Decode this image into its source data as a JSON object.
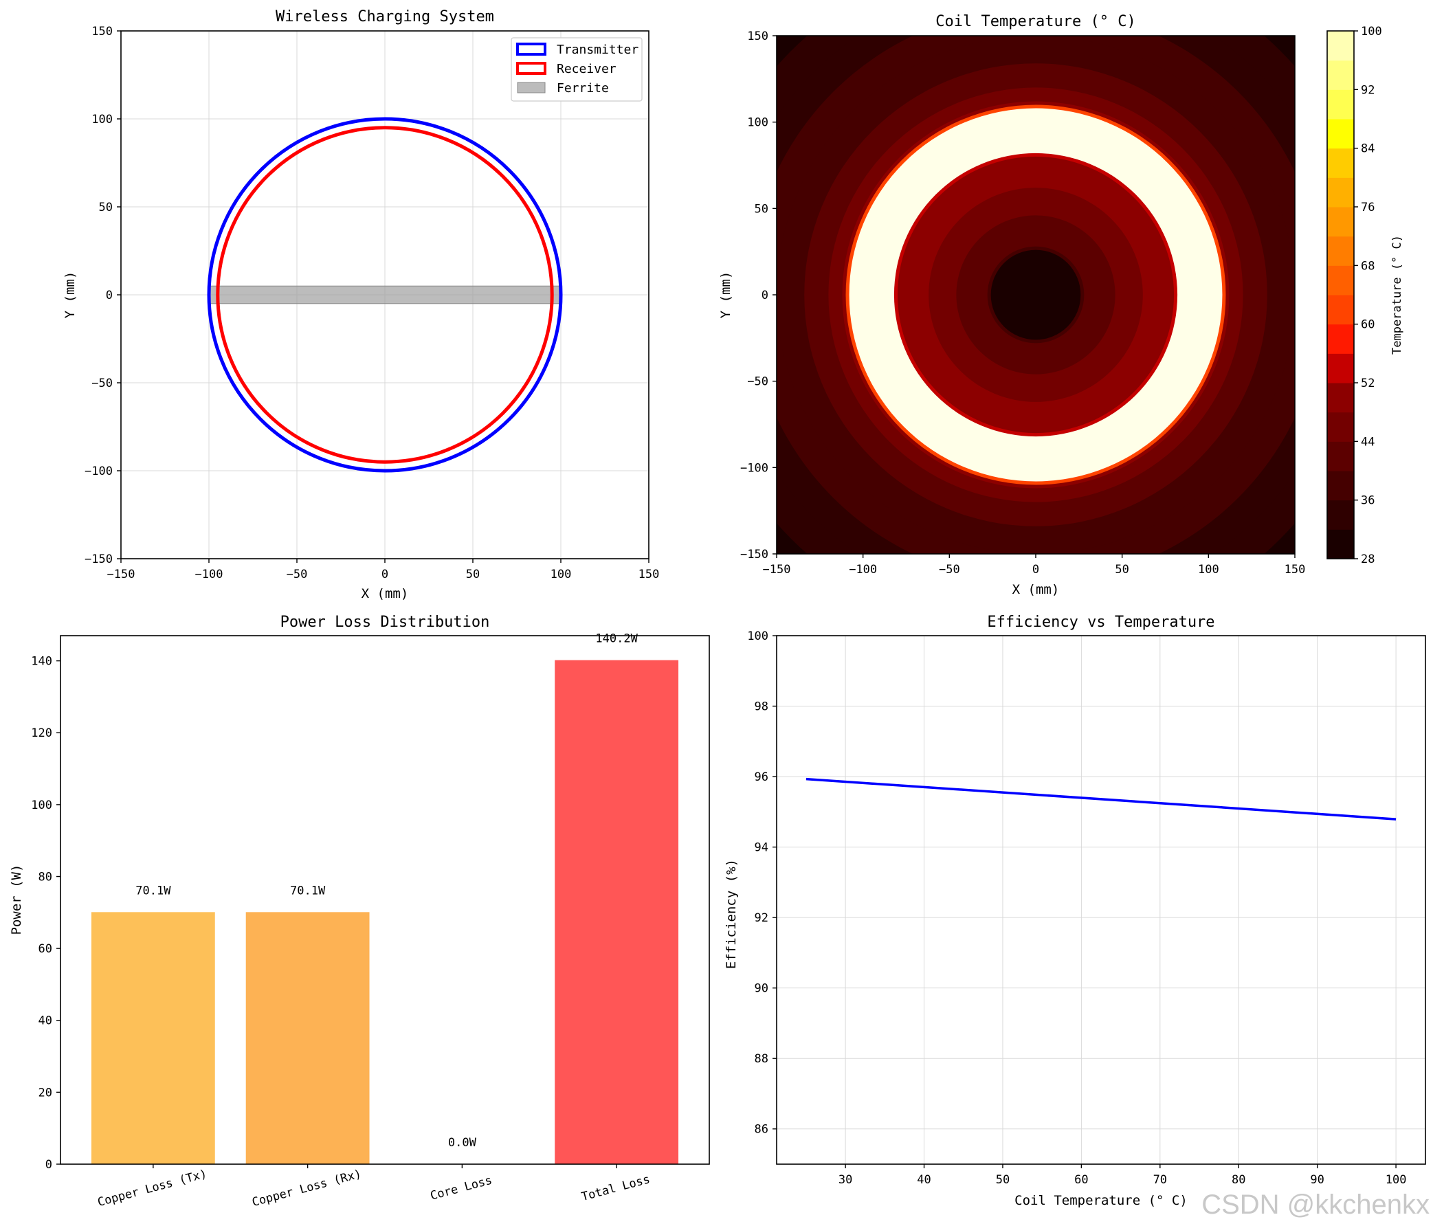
{
  "chart_data": [
    {
      "type": "line",
      "title": "Wireless Charging System",
      "xlabel": "X (mm)",
      "ylabel": "Y (mm)",
      "xlim": [
        -150,
        150
      ],
      "ylim": [
        -150,
        150
      ],
      "xticks": [
        "−150",
        "−100",
        "−50",
        "0",
        "50",
        "100",
        "150"
      ],
      "yticks": [
        "150",
        "100",
        "50",
        "0",
        "−50",
        "−100",
        "−150"
      ],
      "grid": true,
      "legend_position": "top-right",
      "series": [
        {
          "name": "Transmitter",
          "shape": "circle",
          "center": [
            0,
            0
          ],
          "radius": 100,
          "color": "#0000ff"
        },
        {
          "name": "Receiver",
          "shape": "circle",
          "center": [
            0,
            0
          ],
          "radius": 95,
          "color": "#ff0000"
        },
        {
          "name": "Ferrite",
          "shape": "rectangle",
          "x_range": [
            -100,
            100
          ],
          "y_range": [
            -5,
            5
          ],
          "color": "#a0a0a0"
        }
      ]
    },
    {
      "type": "heatmap",
      "title": "Coil Temperature (° C)",
      "xlabel": "X (mm)",
      "ylabel": "Y (mm)",
      "xlim": [
        -150,
        150
      ],
      "ylim": [
        -150,
        150
      ],
      "xticks": [
        "−150",
        "−100",
        "−50",
        "0",
        "50",
        "100",
        "150"
      ],
      "yticks": [
        "150",
        "100",
        "50",
        "0",
        "−50",
        "−100",
        "−150"
      ],
      "colorbar_label": "Temperature (° C)",
      "colorbar_ticks": [
        "100",
        "92",
        "84",
        "76",
        "68",
        "60",
        "52",
        "44",
        "36",
        "28"
      ],
      "range": [
        28,
        100
      ],
      "hot_ring_radius_mm": [
        80,
        112
      ],
      "center_temperature": 28,
      "corner_temperature": 32
    },
    {
      "type": "bar",
      "title": "Power Loss Distribution",
      "xlabel": "",
      "ylabel": "Power (W)",
      "ylim": [
        0,
        147
      ],
      "yticks": [
        "0",
        "20",
        "40",
        "60",
        "80",
        "100",
        "120",
        "140"
      ],
      "categories": [
        "Copper Loss (Tx)",
        "Copper Loss (Rx)",
        "Core Loss",
        "Total Loss"
      ],
      "values": [
        70.1,
        70.1,
        0.0,
        140.2
      ],
      "data_labels": [
        "70.1W",
        "70.1W",
        "0.0W",
        "140.2W"
      ],
      "colors": [
        "#fdbd4f",
        "#fdae4b",
        "#ff9a4a",
        "#ff4d4d"
      ]
    },
    {
      "type": "line",
      "title": "Efficiency vs Temperature",
      "xlabel": "Coil Temperature (° C)",
      "ylabel": "Efficiency (%)",
      "xlim": [
        21.25,
        103.75
      ],
      "ylim": [
        85,
        100
      ],
      "xticks": [
        "30",
        "40",
        "50",
        "60",
        "70",
        "80",
        "90",
        "100"
      ],
      "yticks": [
        "86",
        "88",
        "90",
        "92",
        "94",
        "96",
        "98",
        "100"
      ],
      "grid": true,
      "series": [
        {
          "name": "Efficiency",
          "x": [
            25,
            100
          ],
          "y": [
            95.93,
            94.79
          ],
          "color": "#0000ff"
        }
      ]
    }
  ],
  "watermark": "CSDN @kkchenkx"
}
